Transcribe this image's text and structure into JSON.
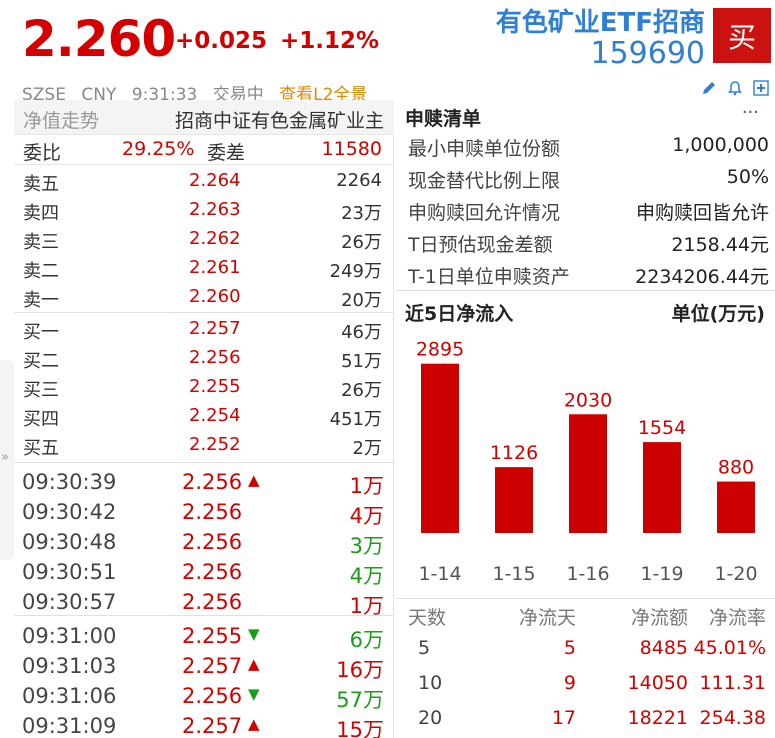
{
  "header": {
    "price": "2.260",
    "change": "+0.025",
    "change_pct": "+1.12%",
    "fund_name": "有色矿业ETF招商",
    "fund_code": "159690",
    "buy_label": "买",
    "exchange": "SZSE",
    "currency": "CNY",
    "time": "9:31:33",
    "status": "交易中",
    "l2_link": "查看L2全景",
    "icons": [
      "edit-icon",
      "bell-icon",
      "plus-icon"
    ]
  },
  "left": {
    "nav_label": "净值走势",
    "index_name": "招商中证有色金属矿业主",
    "weibi_label": "委比",
    "weibi_value": "29.25%",
    "weicha_label": "委差",
    "weicha_value": "11580",
    "asks": [
      {
        "label": "卖五",
        "price": "2.264",
        "volume": "2264"
      },
      {
        "label": "卖四",
        "price": "2.263",
        "volume": "23万"
      },
      {
        "label": "卖三",
        "price": "2.262",
        "volume": "26万"
      },
      {
        "label": "卖二",
        "price": "2.261",
        "volume": "249万"
      },
      {
        "label": "卖一",
        "price": "2.260",
        "volume": "20万"
      }
    ],
    "bids": [
      {
        "label": "买一",
        "price": "2.257",
        "volume": "46万"
      },
      {
        "label": "买二",
        "price": "2.256",
        "volume": "51万"
      },
      {
        "label": "买三",
        "price": "2.255",
        "volume": "26万"
      },
      {
        "label": "买四",
        "price": "2.254",
        "volume": "451万"
      },
      {
        "label": "买五",
        "price": "2.252",
        "volume": "2万"
      }
    ],
    "ticks": [
      {
        "time": "09:30:39",
        "price": "2.256",
        "dir": "up",
        "volume": "1万",
        "vol_color": "red"
      },
      {
        "time": "09:30:42",
        "price": "2.256",
        "dir": "",
        "volume": "4万",
        "vol_color": "red"
      },
      {
        "time": "09:30:48",
        "price": "2.256",
        "dir": "",
        "volume": "3万",
        "vol_color": "green"
      },
      {
        "time": "09:30:51",
        "price": "2.256",
        "dir": "",
        "volume": "4万",
        "vol_color": "green"
      },
      {
        "time": "09:30:57",
        "price": "2.256",
        "dir": "",
        "volume": "1万",
        "vol_color": "red"
      },
      {
        "time": "09:31:00",
        "price": "2.255",
        "dir": "down",
        "volume": "6万",
        "vol_color": "green"
      },
      {
        "time": "09:31:03",
        "price": "2.257",
        "dir": "up",
        "volume": "16万",
        "vol_color": "red"
      },
      {
        "time": "09:31:06",
        "price": "2.256",
        "dir": "down",
        "volume": "57万",
        "vol_color": "green"
      },
      {
        "time": "09:31:09",
        "price": "2.257",
        "dir": "up",
        "volume": "15万",
        "vol_color": "red"
      }
    ],
    "side_toggle": "»"
  },
  "creation": {
    "title": "申赎清单",
    "more": "···",
    "rows": [
      {
        "k": "最小申赎单位份额",
        "v": "1,000,000"
      },
      {
        "k": "现金替代比例上限",
        "v": "50%"
      },
      {
        "k": "申购赎回允许情况",
        "v": "申购赎回皆允许"
      },
      {
        "k": "T日预估现金差额",
        "v": "2158.44元"
      },
      {
        "k": "T-1日单位申赎资产",
        "v": "2234206.44元"
      }
    ]
  },
  "flow": {
    "title": "近5日净流入",
    "unit": "单位(万元)"
  },
  "chart_data": {
    "type": "bar",
    "categories": [
      "1-14",
      "1-15",
      "1-16",
      "1-19",
      "1-20"
    ],
    "values": [
      2895,
      1126,
      2030,
      1554,
      880
    ],
    "title": "近5日净流入",
    "ylabel": "单位(万元)",
    "ylim": [
      0,
      3300
    ],
    "color": "#cc0000",
    "grid": false
  },
  "stats": {
    "headers": [
      "天数",
      "净流天",
      "净流额",
      "净流率"
    ],
    "rows": [
      [
        "5",
        "5",
        "8485",
        "45.01%"
      ],
      [
        "10",
        "9",
        "14050",
        "111.31"
      ],
      [
        "20",
        "17",
        "18221",
        "254.38"
      ]
    ]
  }
}
